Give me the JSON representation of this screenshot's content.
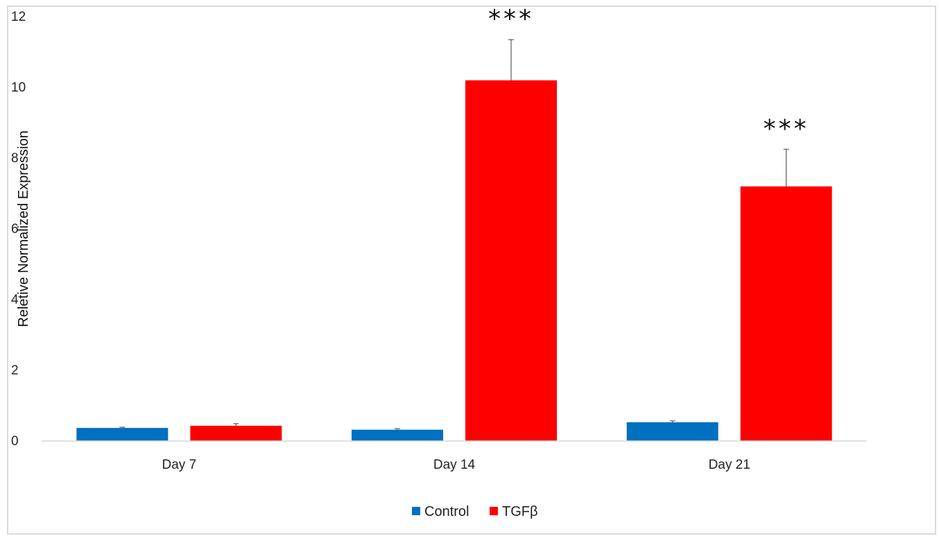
{
  "chart_data": {
    "type": "bar",
    "title": "",
    "xlabel": "",
    "ylabel": "Reletive Normalized Expression",
    "ylim": [
      0,
      12
    ],
    "yticks": [
      {
        "value": 0,
        "label": "0"
      },
      {
        "value": 2,
        "label": "2"
      },
      {
        "value": 4,
        "label": "4"
      },
      {
        "value": 6,
        "label": "6"
      },
      {
        "value": 8,
        "label": "8"
      },
      {
        "value": 10,
        "label": "10"
      },
      {
        "value": 12,
        "label": "12"
      }
    ],
    "categories": [
      "Day 7",
      "Day 14",
      "Day 21"
    ],
    "series": [
      {
        "name": "Control",
        "color": "#0070c0",
        "values": [
          0.37,
          0.32,
          0.53
        ],
        "errors": [
          0.02,
          0.03,
          0.04
        ]
      },
      {
        "name": "TGFβ",
        "color": "#ff0000",
        "values": [
          0.43,
          10.2,
          7.2
        ],
        "errors": [
          0.06,
          1.15,
          1.05
        ]
      }
    ],
    "annotations": [
      {
        "category": "Day 14",
        "series": "TGFβ",
        "text": "***"
      },
      {
        "category": "Day 21",
        "series": "TGFβ",
        "text": "***"
      }
    ],
    "grid": false,
    "legend_position": "bottom"
  }
}
